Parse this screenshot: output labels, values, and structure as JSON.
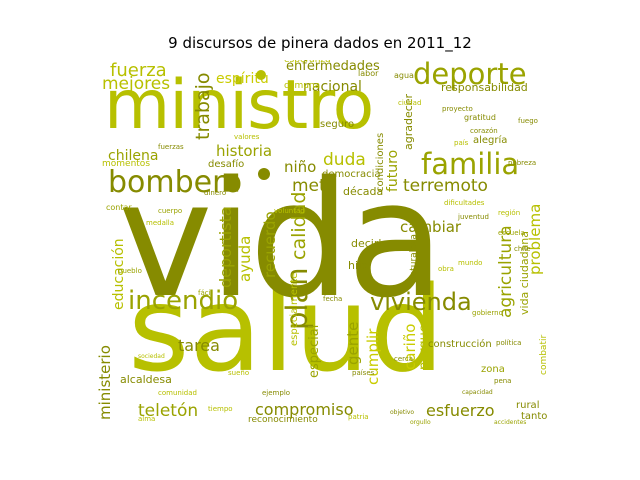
{
  "title": "9 discursos de pinera dados en 2011_12",
  "palette": {
    "dark_olive": "#868b00",
    "olive": "#9aa300",
    "lime": "#b7c000",
    "yellow_lime": "#c9cc00",
    "pale": "#d3d34a"
  },
  "words": {
    "salud": "salud",
    "vida": "vida",
    "ministro": "ministro",
    "bombero": "bombero",
    "deporte": "deporte",
    "familia": "familia",
    "incendio": "incendio",
    "vivienda": "vivienda",
    "fuerza": "fuerza",
    "mejores": "mejores",
    "espiritu": "espíritu",
    "enfermedades": "enfermedades",
    "nacional": "nacional",
    "trabajo": "trabajo",
    "historia": "historia",
    "chilena": "chilena",
    "nino": "niño",
    "meta": "meta",
    "duda": "duda",
    "terremoto": "terremoto",
    "calidad": "calidad",
    "plan": "plan",
    "recuerdo": "recuerdo",
    "deportista": "deportista",
    "ayuda": "ayuda",
    "cambiar": "cambiar",
    "agricultura": "agricultura",
    "problema": "problema",
    "tarea": "tarea",
    "educacion": "educación",
    "ministerio": "ministerio",
    "teleton": "teletón",
    "compromiso": "compromiso",
    "esfuerzo": "esfuerzo",
    "gente": "gente",
    "cumplir": "cumplir",
    "carino": "cariño",
    "parque": "parque",
    "especial": "especial",
    "alcaldesa": "alcaldesa",
    "futuro": "futuro",
    "responsabilidad": "responsabilidad",
    "agradecer": "agradecer",
    "alegria": "alegría",
    "condiciones": "condiciones",
    "decada": "década",
    "democracia": "democracia",
    "decirle": "decirle",
    "hijo": "hijo",
    "seguro": "seguro",
    "desafio": "desafío",
    "momentos": "momentos",
    "construccion": "construcción",
    "zona": "zona",
    "rural": "rural",
    "tanto": "tanto",
    "comuna": "comuna",
    "esperanza": "esperanza",
    "reconocimiento": "reconocimiento",
    "vida_ciudadana": "vida ciudadana",
    "naturaleza": "naturaleza",
    "especialmente": "especialmente",
    "combatir": "combatir",
    "gratitud": "gratitud",
    "labor": "labor",
    "agua": "agua",
    "medalla": "medalla",
    "contar": "contar",
    "objetivo": "objetivo",
    "region": "región",
    "corazon": "corazón",
    "escuela": "escuela",
    "fuego": "fuego",
    "pais": "país",
    "mundo": "mundo",
    "paises": "países",
    "comunidad": "comunidad",
    "accidentes": "accidentes",
    "dificultades": "dificultades",
    "politica": "política",
    "tiempo": "tiempo",
    "dinero": "dinero",
    "cuerpo": "cuerpo",
    "fuerzas": "fuerzas",
    "valores": "valores",
    "pobreza": "pobreza",
    "ciudad": "ciudad",
    "fecha": "fecha",
    "obra": "obra",
    "pena": "pena",
    "facil": "fácil",
    "cerca": "cerca",
    "sueno": "sueño",
    "ejemplo": "ejemplo",
    "orgullo": "orgullo",
    "capacidad": "capacidad",
    "sociedad": "sociedad",
    "proyecto": "proyecto",
    "voluntad": "voluntad",
    "juventud": "juventud",
    "gobierno": "gobierno",
    "alma": "alma",
    "chile": "chile",
    "pueblo": "pueblo",
    "patria": "patria"
  }
}
